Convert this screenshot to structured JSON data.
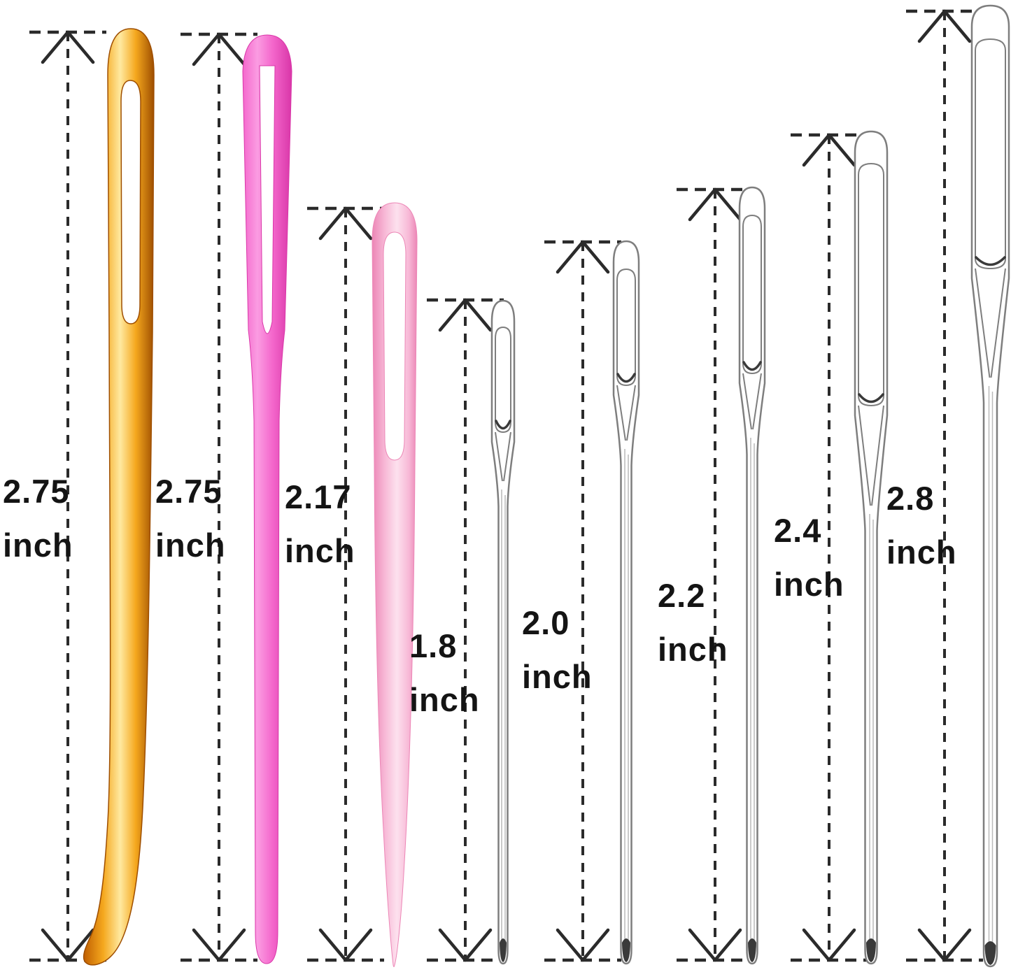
{
  "figure": {
    "type": "measurement-diagram",
    "background": "#ffffff",
    "unit_system": "inch"
  },
  "colors": {
    "line_color": "#2b2b2b",
    "label_color": "#141414",
    "gold_edge": "#C05E00",
    "gold_mid": "#F5A81E",
    "gold_light": "#FFE9A0",
    "gold_deep": "#9E4E00",
    "pink_edge": "#D936A8",
    "pink_mid": "#F468CC",
    "pink_light": "#FB9CE2",
    "lpink_edge": "#EC86B6",
    "lpink_mid": "#F7B8D6",
    "lpink_light": "#FDE1EE",
    "silver_outline": "#7E7E7E",
    "silver_dark": "#3A3A3A"
  },
  "needles": [
    {
      "id": "gold-bent-tip-yarn-needle",
      "value": "2.75",
      "unit": "inch"
    },
    {
      "id": "hot-pink-plastic-yarn-needle",
      "value": "2.75",
      "unit": "inch"
    },
    {
      "id": "light-pink-plastic-yarn-needle",
      "value": "2.17",
      "unit": "inch"
    },
    {
      "id": "steel-needle-small",
      "value": "1.8",
      "unit": "inch"
    },
    {
      "id": "steel-needle-medium-small",
      "value": "2.0",
      "unit": "inch"
    },
    {
      "id": "steel-needle-medium",
      "value": "2.2",
      "unit": "inch"
    },
    {
      "id": "steel-needle-large",
      "value": "2.4",
      "unit": "inch"
    },
    {
      "id": "steel-needle-extra-large",
      "value": "2.8",
      "unit": "inch"
    }
  ]
}
